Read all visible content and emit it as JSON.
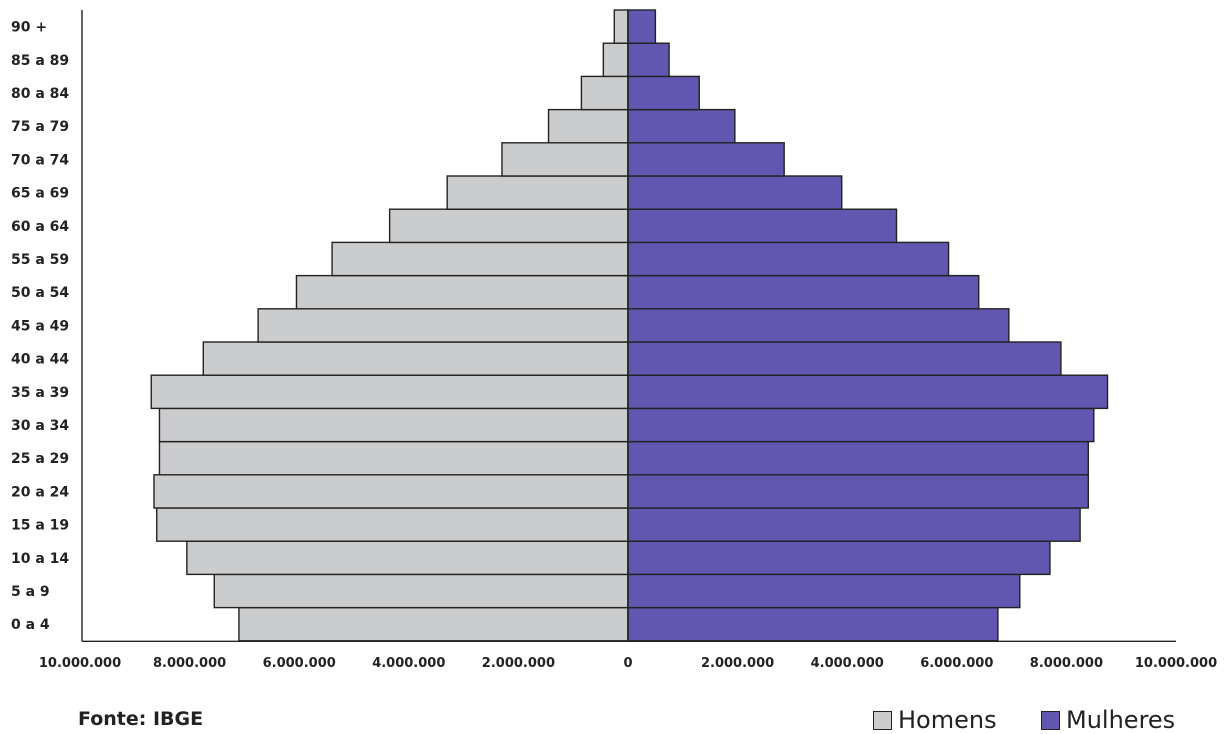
{
  "chart_data": {
    "type": "bar",
    "orientation": "horizontal",
    "layout": "population-pyramid",
    "categories": [
      "0 a 4",
      "5 a 9",
      "10 a 14",
      "15 a 19",
      "20 a 24",
      "25 a 29",
      "30 a 34",
      "35 a 39",
      "40 a 44",
      "45 a 49",
      "50 a 54",
      "55 a 59",
      "60 a 64",
      "65 a 69",
      "70 a 74",
      "75 a 79",
      "80 a 84",
      "85 a 89",
      "90 +"
    ],
    "series": [
      {
        "name": "Homens",
        "color": "#cbcccd",
        "side": "left",
        "values": [
          7100000,
          7550000,
          8050000,
          8600000,
          8650000,
          8550000,
          8550000,
          8700000,
          7750000,
          6750000,
          6050000,
          5400000,
          4350000,
          3300000,
          2300000,
          1450000,
          850000,
          450000,
          250000
        ]
      },
      {
        "name": "Mulheres",
        "color": "#6257b0",
        "side": "right",
        "values": [
          6750000,
          7150000,
          7700000,
          8250000,
          8400000,
          8400000,
          8500000,
          8750000,
          7900000,
          6950000,
          6400000,
          5850000,
          4900000,
          3900000,
          2850000,
          1950000,
          1300000,
          750000,
          500000
        ]
      }
    ],
    "x_ticks": [
      "10.000.000",
      "8.000.000",
      "6.000.000",
      "4.000.000",
      "2.000.000",
      "0",
      "2.000.000",
      "4.000.000",
      "6.000.000",
      "8.000.000",
      "10.000.000"
    ],
    "xlim": [
      -10000000,
      10000000
    ],
    "grid": false,
    "legend_position": "bottom-right"
  },
  "source": "Fonte: IBGE",
  "legend": {
    "men_label": "Homens",
    "women_label": "Mulheres"
  }
}
